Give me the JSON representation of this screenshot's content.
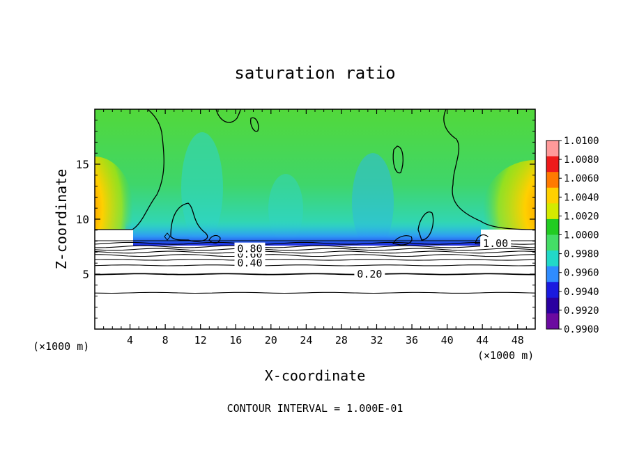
{
  "chart_data": {
    "type": "heatmap",
    "title": "saturation ratio",
    "xlabel": "X-coordinate",
    "ylabel": "Z-coordinate",
    "x_unit_label": "(×1000 m)",
    "x_unit_label_right": "(×1000 m)",
    "xlim": [
      0,
      50
    ],
    "ylim": [
      0,
      20
    ],
    "x_ticks": [
      4,
      8,
      12,
      16,
      20,
      24,
      28,
      32,
      36,
      40,
      44,
      48
    ],
    "y_ticks": [
      5,
      10,
      15
    ],
    "footer": "CONTOUR INTERVAL = 1.000E-01",
    "colorbar": {
      "levels": [
        "1.0100",
        "1.0080",
        "1.0060",
        "1.0040",
        "1.0020",
        "1.0000",
        "0.9980",
        "0.9960",
        "0.9940",
        "0.9920",
        "0.9900"
      ],
      "colors": [
        "#ff9a9a",
        "#ee1a1a",
        "#ff7a00",
        "#ffd000",
        "#d4ea00",
        "#22cc22",
        "#44dd66",
        "#22d9c8",
        "#2f8cff",
        "#1a1adf",
        "#2a00a0",
        "#6b0aa0"
      ]
    },
    "contour_labels": [
      {
        "text": "0.20",
        "x": 31.2,
        "y": 5.0
      },
      {
        "text": "0.40",
        "x": 17.6,
        "y": 6.0
      },
      {
        "text": "0.60",
        "x": 17.6,
        "y": 6.8
      },
      {
        "text": "0.80",
        "x": 17.6,
        "y": 7.3
      },
      {
        "text": "1.00",
        "x": 45.5,
        "y": 7.8
      }
    ],
    "contour_levels_y": [
      3.3,
      5.0,
      5.8,
      6.3,
      6.7,
      7.0,
      7.25,
      7.5,
      7.8
    ],
    "cloud_base_z": 8.0
  }
}
